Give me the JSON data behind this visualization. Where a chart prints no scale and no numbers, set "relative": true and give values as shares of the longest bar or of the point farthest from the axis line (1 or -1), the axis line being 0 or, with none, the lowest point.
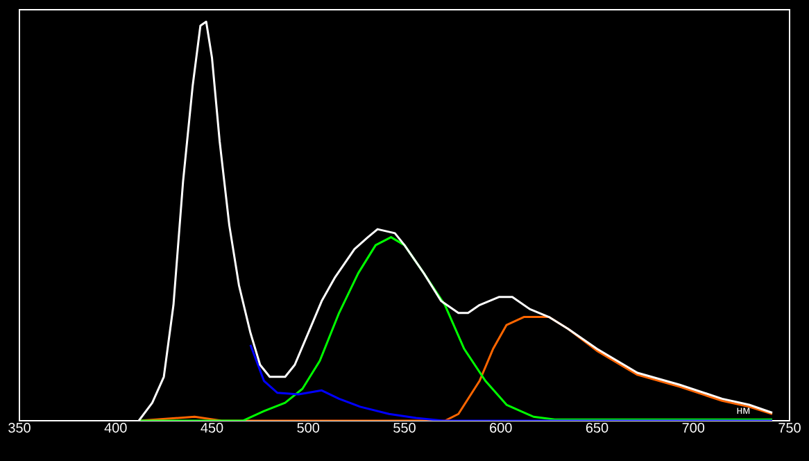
{
  "chart_data": {
    "type": "line",
    "xlabel": "нм",
    "relative": true,
    "xlim": [
      350,
      750
    ],
    "xticks": [
      350,
      400,
      450,
      500,
      550,
      600,
      650,
      700,
      750
    ],
    "grid": false,
    "marker": "none",
    "line_style": "solid",
    "series": [
      {
        "color": "#ff6600",
        "x": [
          412,
          441,
          455,
          571,
          578,
          589,
          596,
          603,
          612,
          625,
          635,
          650,
          671,
          693,
          715,
          729,
          741
        ],
        "values": [
          0,
          0.01,
          0,
          0,
          0.017,
          0.1,
          0.18,
          0.24,
          0.26,
          0.26,
          0.23,
          0.175,
          0.115,
          0.085,
          0.05,
          0.035,
          0.017
        ]
      },
      {
        "color": "#00ff00",
        "x": [
          412,
          466,
          477,
          488,
          497,
          506,
          516,
          526,
          535,
          543,
          550,
          560,
          571,
          581,
          592,
          603,
          617,
          628,
          741
        ],
        "values": [
          0,
          0,
          0.024,
          0.045,
          0.08,
          0.15,
          0.27,
          0.37,
          0.44,
          0.46,
          0.44,
          0.37,
          0.29,
          0.18,
          0.1,
          0.04,
          0.01,
          0.003,
          0.003
        ]
      },
      {
        "color": "#0000ff",
        "x": [
          470,
          477,
          484,
          495,
          507,
          516,
          527,
          542,
          556,
          570,
          741
        ],
        "values": [
          0.19,
          0.1,
          0.07,
          0.066,
          0.076,
          0.055,
          0.035,
          0.017,
          0.007,
          0,
          0
        ]
      },
      {
        "color": "#ffffff",
        "x": [
          412,
          419,
          425,
          430,
          435,
          440,
          444,
          447,
          450,
          454,
          459,
          464,
          470,
          475,
          480,
          488,
          493,
          500,
          507,
          514,
          524,
          531,
          536,
          545,
          550,
          560,
          569,
          578,
          583,
          589,
          599,
          606,
          615,
          625,
          635,
          650,
          671,
          693,
          715,
          729,
          741
        ],
        "values": [
          0,
          0.045,
          0.11,
          0.29,
          0.6,
          0.84,
          0.99,
          1,
          0.91,
          0.7,
          0.49,
          0.34,
          0.22,
          0.14,
          0.11,
          0.11,
          0.14,
          0.22,
          0.3,
          0.36,
          0.43,
          0.46,
          0.48,
          0.47,
          0.44,
          0.37,
          0.3,
          0.27,
          0.27,
          0.29,
          0.31,
          0.31,
          0.28,
          0.26,
          0.23,
          0.18,
          0.12,
          0.09,
          0.055,
          0.04,
          0.02
        ]
      }
    ]
  }
}
